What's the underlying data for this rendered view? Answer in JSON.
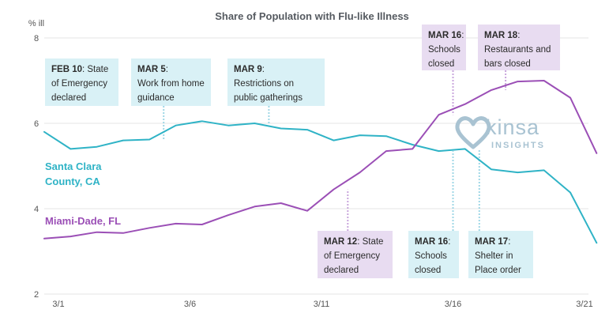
{
  "chart_data": {
    "type": "line",
    "title": "Share of Population with Flu-like Illness",
    "ylabel": "% ill",
    "ylim": [
      2,
      8
    ],
    "yticks": [
      2,
      4,
      6,
      8
    ],
    "xticks": [
      {
        "index": 0,
        "label": "3/1"
      },
      {
        "index": 5,
        "label": "3/6"
      },
      {
        "index": 10,
        "label": "3/11"
      },
      {
        "index": 15,
        "label": "3/16"
      },
      {
        "index": 20,
        "label": "3/21"
      }
    ],
    "grid": true,
    "series": [
      {
        "name": "Santa Clara County, CA",
        "name_lines": [
          "Santa Clara",
          "County, CA"
        ],
        "color": "#2fb3c6",
        "values": [
          5.8,
          5.4,
          5.45,
          5.6,
          5.62,
          5.95,
          6.05,
          5.95,
          6.0,
          5.88,
          5.85,
          5.6,
          5.72,
          5.7,
          5.5,
          5.35,
          5.4,
          4.92,
          4.85,
          4.9,
          4.38,
          3.2
        ]
      },
      {
        "name": "Miami-Dade, FL",
        "name_lines": [
          "Miami-Dade, FL"
        ],
        "color": "#9b4fb6",
        "values": [
          3.3,
          3.35,
          3.45,
          3.43,
          3.55,
          3.65,
          3.63,
          3.85,
          4.05,
          4.13,
          3.95,
          4.45,
          4.85,
          5.35,
          5.4,
          6.2,
          6.45,
          6.78,
          6.98,
          7.0,
          6.6,
          5.3
        ]
      }
    ],
    "annotations": [
      {
        "date": "FEB 10",
        "lines": [
          ": State",
          "of Emergency",
          "declared"
        ],
        "color": "teal",
        "at_index": -1
      },
      {
        "date": "MAR 5",
        "lines": [
          ":",
          "Work from home",
          "guidance"
        ],
        "color": "teal",
        "at_index": 4
      },
      {
        "date": "MAR 9",
        "lines": [
          ":",
          "Restrictions on",
          "public gatherings"
        ],
        "color": "teal",
        "at_index": 8
      },
      {
        "date": "MAR 16",
        "lines": [
          ":",
          "Schools",
          "closed"
        ],
        "color": "purple",
        "at_index": 15
      },
      {
        "date": "MAR 18",
        "lines": [
          ":",
          "Restaurants and",
          "bars closed"
        ],
        "color": "purple",
        "at_index": 17
      },
      {
        "date": "MAR 12",
        "lines": [
          ": State",
          "of Emergency",
          "declared"
        ],
        "color": "purple",
        "at_index": 11
      },
      {
        "date": "MAR 16",
        "lines": [
          ":",
          "Schools",
          "closed"
        ],
        "color": "teal",
        "at_index": 15
      },
      {
        "date": "MAR 17",
        "lines": [
          ":",
          "Shelter in",
          "Place order"
        ],
        "color": "teal",
        "at_index": 16
      }
    ]
  },
  "logo": {
    "name": "kinsa",
    "subtitle": "INSIGHTS",
    "icon": "heart-logo-icon"
  }
}
